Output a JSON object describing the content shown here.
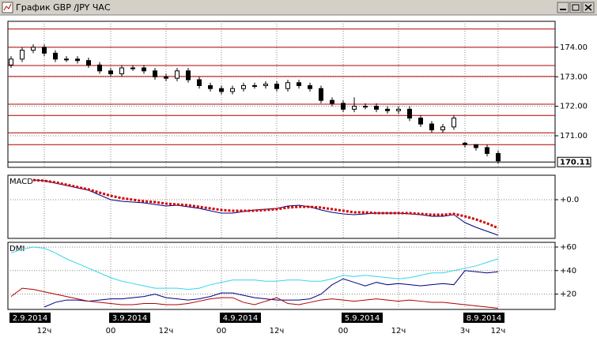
{
  "title": "График GBP /JPY  ЧАС",
  "chart_data": [
    {
      "type": "candlestick",
      "categories": [
        null,
        null,
        null,
        "12ч",
        null,
        null,
        null,
        null,
        null,
        "00",
        null,
        null,
        null,
        null,
        "12ч",
        null,
        null,
        null,
        null,
        "00",
        null,
        null,
        null,
        null,
        "12ч",
        null,
        null,
        null,
        null,
        null,
        "00",
        null,
        null,
        null,
        null,
        "12ч",
        null,
        null,
        null,
        null,
        null,
        "3ч",
        null,
        null,
        "12ч"
      ],
      "dates": [
        "2.9.2014",
        null,
        null,
        null,
        null,
        null,
        null,
        null,
        null,
        "3.9.2014",
        null,
        null,
        null,
        null,
        null,
        null,
        null,
        null,
        null,
        "4.9.2014",
        null,
        null,
        null,
        null,
        null,
        null,
        null,
        null,
        null,
        null,
        "5.9.2014",
        null,
        null,
        null,
        null,
        null,
        null,
        null,
        null,
        null,
        null,
        "8.9.2014",
        null,
        null,
        null
      ],
      "open": [
        173.4,
        173.6,
        173.9,
        174.0,
        173.8,
        173.6,
        173.6,
        173.55,
        173.4,
        173.2,
        173.1,
        173.3,
        173.3,
        173.2,
        173.0,
        172.95,
        173.2,
        172.9,
        172.7,
        172.6,
        172.5,
        172.6,
        172.7,
        172.7,
        172.75,
        172.6,
        172.8,
        172.7,
        172.6,
        172.2,
        172.1,
        171.9,
        172.0,
        172.0,
        171.9,
        171.85,
        171.9,
        171.6,
        171.4,
        171.2,
        171.3,
        170.75,
        170.7,
        170.6,
        170.4
      ],
      "high": [
        173.7,
        174.0,
        174.1,
        174.1,
        173.9,
        173.7,
        173.7,
        173.65,
        173.5,
        173.3,
        173.4,
        173.4,
        173.4,
        173.3,
        173.1,
        173.3,
        173.3,
        173.0,
        172.8,
        172.7,
        172.7,
        172.8,
        172.8,
        172.85,
        172.85,
        172.9,
        172.9,
        172.8,
        172.7,
        172.3,
        172.2,
        172.3,
        172.1,
        172.1,
        172.0,
        172.0,
        172.0,
        171.7,
        171.5,
        171.4,
        171.7,
        170.8,
        170.7,
        170.7,
        170.5
      ],
      "low": [
        173.3,
        173.5,
        173.8,
        173.7,
        173.5,
        173.5,
        173.45,
        173.3,
        173.1,
        173.0,
        173.0,
        173.2,
        173.1,
        172.9,
        172.85,
        172.85,
        172.8,
        172.6,
        172.5,
        172.4,
        172.4,
        172.5,
        172.6,
        172.6,
        172.5,
        172.5,
        172.6,
        172.5,
        172.1,
        172.0,
        171.8,
        171.8,
        171.9,
        171.8,
        171.75,
        171.75,
        171.5,
        171.3,
        171.1,
        171.1,
        171.2,
        170.6,
        170.5,
        170.3,
        170.05
      ],
      "close": [
        173.6,
        173.9,
        174.0,
        173.8,
        173.6,
        173.6,
        173.55,
        173.4,
        173.2,
        173.1,
        173.3,
        173.3,
        173.2,
        173.0,
        172.95,
        173.2,
        172.9,
        172.7,
        172.6,
        172.5,
        172.6,
        172.7,
        172.7,
        172.75,
        172.6,
        172.8,
        172.7,
        172.6,
        172.2,
        172.1,
        171.9,
        172.0,
        172.0,
        171.9,
        171.85,
        171.9,
        171.6,
        171.4,
        171.2,
        171.3,
        171.6,
        170.7,
        170.6,
        170.4,
        170.15
      ],
      "ylim": [
        169.93,
        174.88
      ],
      "yticks": [
        {
          "value": 171,
          "label": "171.00"
        },
        {
          "value": 172,
          "label": "172.00"
        },
        {
          "value": 173,
          "label": "173.00"
        },
        {
          "value": 174,
          "label": "174.00"
        }
      ],
      "levels": [
        174.62,
        174.0,
        173.38,
        173.01,
        172.07,
        171.69,
        171.1,
        170.7
      ],
      "level_color": "#b00000",
      "last_price": 170.11
    },
    {
      "type": "line",
      "title": "MACD",
      "ylim": [
        -0.49,
        0.31
      ],
      "yticks": [
        {
          "value": 0,
          "label": "+0.0"
        }
      ],
      "series": [
        {
          "color": "#000080",
          "style": "solid",
          "values": [
            null,
            null,
            0.25,
            0.24,
            0.21,
            0.18,
            0.15,
            0.12,
            0.06,
            0.0,
            -0.02,
            -0.03,
            -0.04,
            -0.06,
            -0.08,
            -0.07,
            -0.09,
            -0.11,
            -0.14,
            -0.17,
            -0.17,
            -0.15,
            -0.13,
            -0.12,
            -0.11,
            -0.08,
            -0.07,
            -0.09,
            -0.13,
            -0.16,
            -0.18,
            -0.19,
            -0.18,
            -0.17,
            -0.17,
            -0.17,
            -0.18,
            -0.19,
            -0.21,
            -0.21,
            -0.19,
            -0.29,
            -0.35,
            -0.4,
            -0.45
          ]
        },
        {
          "color": "#d00000",
          "style": "dotted",
          "values": [
            null,
            null,
            0.25,
            0.24,
            0.22,
            0.19,
            0.16,
            0.13,
            0.09,
            0.05,
            0.02,
            0.0,
            -0.02,
            -0.03,
            -0.05,
            -0.06,
            -0.07,
            -0.09,
            -0.11,
            -0.13,
            -0.14,
            -0.14,
            -0.14,
            -0.13,
            -0.12,
            -0.1,
            -0.09,
            -0.09,
            -0.1,
            -0.12,
            -0.14,
            -0.16,
            -0.16,
            -0.17,
            -0.17,
            -0.17,
            -0.17,
            -0.18,
            -0.19,
            -0.19,
            -0.18,
            -0.21,
            -0.25,
            -0.3,
            -0.36
          ]
        }
      ]
    },
    {
      "type": "line",
      "title": "DMI",
      "ylim": [
        7,
        64
      ],
      "yticks": [
        {
          "value": 20,
          "label": "+20"
        },
        {
          "value": 40,
          "label": "+40"
        },
        {
          "value": 60,
          "label": "+60"
        }
      ],
      "series": [
        {
          "color": "#33d6e6",
          "style": "solid",
          "values": [
            55,
            58,
            60,
            59,
            55,
            50,
            46,
            42,
            38,
            34,
            31,
            29,
            27,
            25,
            25,
            25,
            24,
            25,
            28,
            30,
            32,
            32,
            32,
            31,
            31,
            32,
            32,
            31,
            31,
            33,
            36,
            35,
            36,
            35,
            34,
            33,
            34,
            36,
            38,
            38,
            40,
            42,
            44,
            47,
            50
          ]
        },
        {
          "color": "#000080",
          "style": "solid",
          "values": [
            null,
            null,
            null,
            9,
            13,
            15,
            15,
            14,
            15,
            16,
            16,
            17,
            18,
            20,
            17,
            16,
            15,
            16,
            18,
            21,
            21,
            19,
            17,
            16,
            15,
            15,
            15,
            16,
            20,
            28,
            33,
            30,
            27,
            30,
            28,
            29,
            28,
            27,
            28,
            29,
            28,
            40,
            39,
            38,
            39
          ]
        },
        {
          "color": "#b00000",
          "style": "solid",
          "values": [
            18,
            25,
            24,
            22,
            20,
            18,
            16,
            14,
            13,
            12,
            11,
            11,
            12,
            12,
            11,
            11,
            12,
            14,
            16,
            17,
            17,
            13,
            11,
            14,
            17,
            12,
            11,
            13,
            15,
            16,
            15,
            14,
            15,
            16,
            15,
            14,
            15,
            14,
            13,
            13,
            12,
            11,
            10,
            9,
            8
          ]
        }
      ]
    }
  ]
}
